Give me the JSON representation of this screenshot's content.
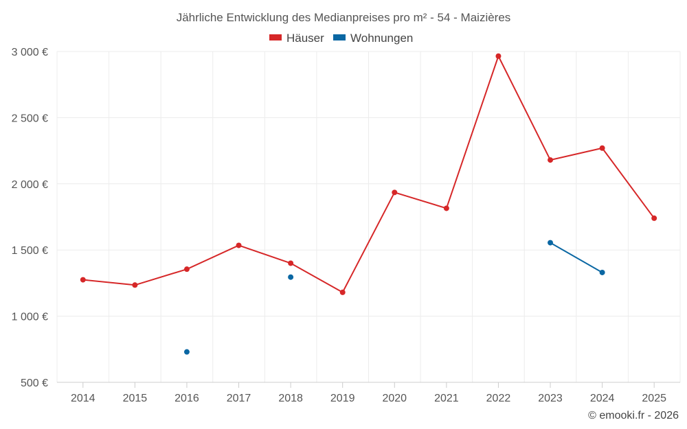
{
  "chart_data": {
    "type": "line",
    "title": "Jährliche Entwicklung des Medianpreises pro m² - 54 - Maizières",
    "xlabel": "",
    "ylabel": "",
    "categories": [
      "2014",
      "2015",
      "2016",
      "2017",
      "2018",
      "2019",
      "2020",
      "2021",
      "2022",
      "2023",
      "2024",
      "2025"
    ],
    "ylim": [
      500,
      3000
    ],
    "yticks": [
      500,
      1000,
      1500,
      2000,
      2500,
      3000
    ],
    "ytick_labels": [
      "500 €",
      "1 000 €",
      "1 500 €",
      "2 000 €",
      "2 500 €",
      "3 000 €"
    ],
    "grid": true,
    "legend_position": "top-center",
    "series": [
      {
        "name": "Häuser",
        "color": "#d62728",
        "values": [
          1275,
          1235,
          1355,
          1535,
          1400,
          1180,
          1935,
          1815,
          2965,
          2180,
          2270,
          1740
        ]
      },
      {
        "name": "Wohnungen",
        "color": "#0a67a3",
        "values": [
          null,
          null,
          730,
          null,
          1295,
          null,
          null,
          null,
          null,
          1555,
          1330,
          null
        ]
      }
    ]
  },
  "credit": "© emooki.fr - 2026"
}
